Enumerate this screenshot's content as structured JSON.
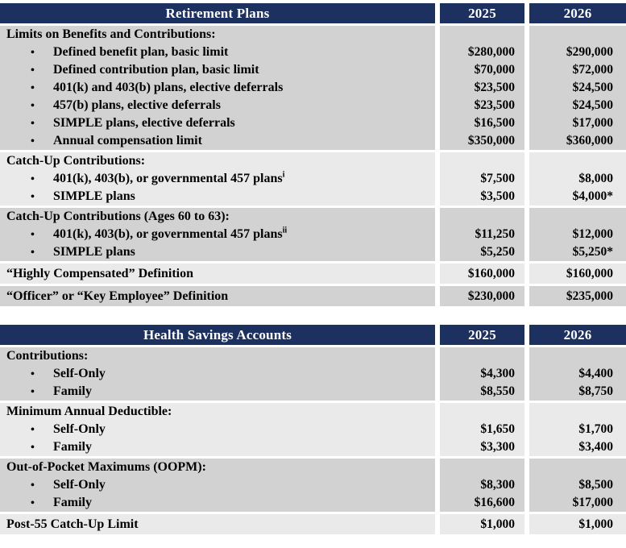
{
  "glyphs": {
    "bullet": "•"
  },
  "colors": {
    "header_bg": "#1c3160",
    "header_text": "#ffffff",
    "section_gray": "#d2d2d2",
    "section_light": "#eaeaea"
  },
  "tables": [
    {
      "title": "Retirement Plans",
      "years": [
        "2025",
        "2026"
      ],
      "sections": [
        {
          "shade": "gray",
          "rows": [
            {
              "type": "heading",
              "label": "Limits on Benefits and Contributions:",
              "v1": "",
              "v2": ""
            },
            {
              "type": "bullet",
              "label": "Defined benefit plan, basic limit",
              "v1": "$280,000",
              "v2": "$290,000"
            },
            {
              "type": "bullet",
              "label": "Defined contribution plan, basic limit",
              "v1": "$70,000",
              "v2": "$72,000"
            },
            {
              "type": "bullet",
              "label": "401(k) and 403(b) plans, elective deferrals",
              "v1": "$23,500",
              "v2": "$24,500"
            },
            {
              "type": "bullet",
              "label": "457(b) plans, elective deferrals",
              "v1": "$23,500",
              "v2": "$24,500"
            },
            {
              "type": "bullet",
              "label": "SIMPLE plans, elective deferrals",
              "v1": "$16,500",
              "v2": "$17,000"
            },
            {
              "type": "bullet",
              "label": "Annual compensation limit",
              "v1": "$350,000",
              "v2": "$360,000"
            }
          ]
        },
        {
          "shade": "light",
          "rows": [
            {
              "type": "heading",
              "label": "Catch-Up Contributions:",
              "v1": "",
              "v2": ""
            },
            {
              "type": "bullet",
              "label": "401(k), 403(b), or governmental 457 plans",
              "sup": "i",
              "v1": "$7,500",
              "v2": "$8,000"
            },
            {
              "type": "bullet",
              "label": "SIMPLE plans",
              "v1": "$3,500",
              "v2": "$4,000*"
            }
          ]
        },
        {
          "shade": "gray",
          "rows": [
            {
              "type": "heading",
              "label": "Catch-Up Contributions (Ages 60 to 63):",
              "v1": "",
              "v2": ""
            },
            {
              "type": "bullet",
              "label": "401(k), 403(b), or governmental 457 plans",
              "sup": "ii",
              "v1": "$11,250",
              "v2": "$12,000"
            },
            {
              "type": "bullet",
              "label": "SIMPLE plans",
              "v1": "$5,250",
              "v2": "$5,250*"
            }
          ]
        },
        {
          "shade": "light",
          "rows": [
            {
              "type": "heading",
              "label": "“Highly Compensated” Definition",
              "v1": "$160,000",
              "v2": "$160,000"
            }
          ]
        },
        {
          "shade": "gray",
          "rows": [
            {
              "type": "heading",
              "label": "“Officer” or “Key Employee” Definition",
              "v1": "$230,000",
              "v2": "$235,000"
            }
          ]
        }
      ]
    },
    {
      "title": "Health Savings Accounts",
      "years": [
        "2025",
        "2026"
      ],
      "sections": [
        {
          "shade": "gray",
          "rows": [
            {
              "type": "heading",
              "label": "Contributions:",
              "v1": "",
              "v2": ""
            },
            {
              "type": "bullet",
              "label": "Self-Only",
              "v1": "$4,300",
              "v2": "$4,400"
            },
            {
              "type": "bullet",
              "label": "Family",
              "v1": "$8,550",
              "v2": "$8,750"
            }
          ]
        },
        {
          "shade": "light",
          "rows": [
            {
              "type": "heading",
              "label": "Minimum Annual Deductible:",
              "v1": "",
              "v2": ""
            },
            {
              "type": "bullet",
              "label": "Self-Only",
              "v1": "$1,650",
              "v2": "$1,700"
            },
            {
              "type": "bullet",
              "label": "Family",
              "v1": "$3,300",
              "v2": "$3,400"
            }
          ]
        },
        {
          "shade": "gray",
          "rows": [
            {
              "type": "heading",
              "label": "Out-of-Pocket Maximums (OOPM):",
              "v1": "",
              "v2": ""
            },
            {
              "type": "bullet",
              "label": "Self-Only",
              "v1": "$8,300",
              "v2": "$8,500"
            },
            {
              "type": "bullet",
              "label": "Family",
              "v1": "$16,600",
              "v2": "$17,000"
            }
          ]
        },
        {
          "shade": "light",
          "rows": [
            {
              "type": "heading",
              "label": "Post-55 Catch-Up Limit",
              "v1": "$1,000",
              "v2": "$1,000"
            }
          ]
        }
      ]
    }
  ]
}
